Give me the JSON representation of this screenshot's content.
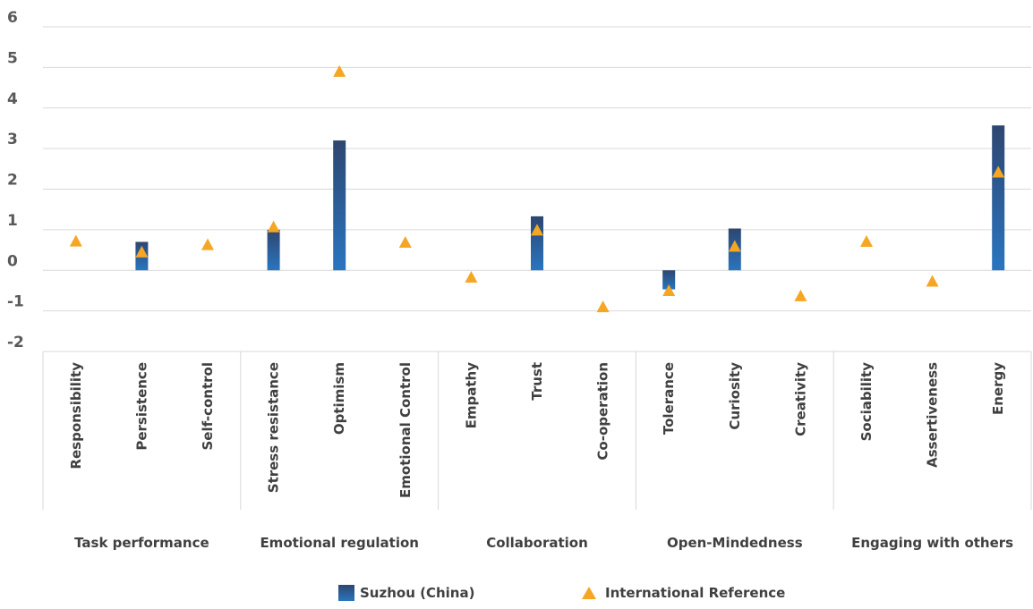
{
  "chart_data": {
    "type": "bar",
    "groups": [
      {
        "name": "Task performance",
        "categories": [
          "Responsibility",
          "Persistence",
          "Self-control"
        ]
      },
      {
        "name": "Emotional regulation",
        "categories": [
          "Stress resistance",
          "Optimism",
          "Emotional Control"
        ]
      },
      {
        "name": "Collaboration",
        "categories": [
          "Empathy",
          "Trust",
          "Co-operation"
        ]
      },
      {
        "name": "Open-Mindedness",
        "categories": [
          "Tolerance",
          "Curiosity",
          "Creativity"
        ]
      },
      {
        "name": "Engaging with others",
        "categories": [
          "Sociability",
          "Assertiveness",
          "Energy"
        ]
      }
    ],
    "categories": [
      "Responsibility",
      "Persistence",
      "Self-control",
      "Stress resistance",
      "Optimism",
      "Emotional Control",
      "Empathy",
      "Trust",
      "Co-operation",
      "Tolerance",
      "Curiosity",
      "Creativity",
      "Sociability",
      "Assertiveness",
      "Energy"
    ],
    "series": [
      {
        "name": "Suzhou (China)",
        "mark": "bar",
        "color": "#2a6db5",
        "values": [
          0,
          0.7,
          0,
          1.0,
          3.2,
          0,
          0,
          1.33,
          0,
          -0.47,
          1.03,
          0,
          0,
          0,
          3.57
        ]
      },
      {
        "name": "International Reference",
        "mark": "triangle",
        "color": "#f5a623",
        "values": [
          0.72,
          0.45,
          0.63,
          1.07,
          4.9,
          0.69,
          -0.17,
          0.99,
          -0.9,
          -0.5,
          0.59,
          -0.63,
          0.71,
          -0.27,
          2.42
        ]
      }
    ],
    "y_ticks": [
      "-2",
      "-1",
      "0",
      "1",
      "2",
      "3",
      "4",
      "5",
      "6"
    ],
    "ylim": [
      -2,
      6
    ],
    "grid": true,
    "legend_position": "bottom"
  }
}
